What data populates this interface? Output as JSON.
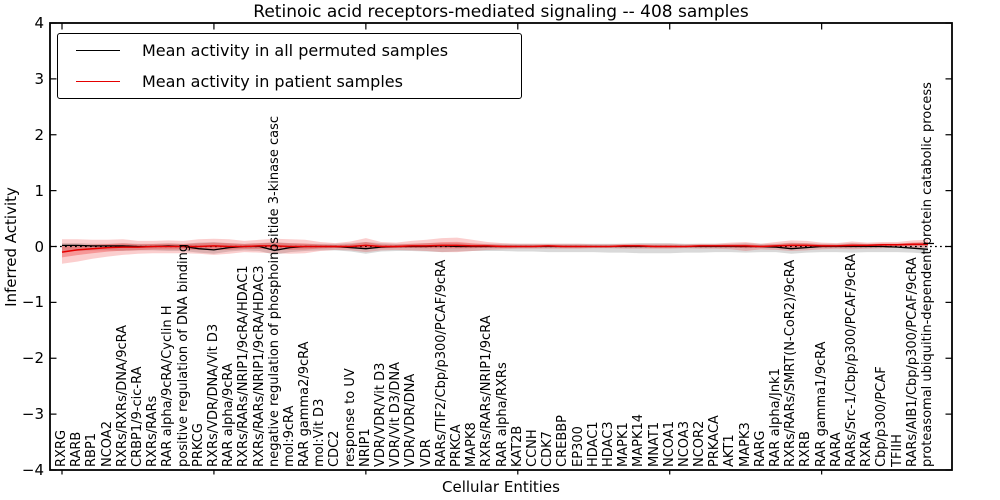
{
  "chart_data": {
    "type": "line",
    "title": "Retinoic acid receptors-mediated signaling -- 408 samples",
    "xlabel": "Cellular Entities",
    "ylabel": "Inferred Activity",
    "ylim": [
      -4,
      4
    ],
    "yticks": [
      4,
      3,
      2,
      1,
      0,
      -1,
      -2,
      -3,
      -4
    ],
    "grid": false,
    "legend_position": "upper left",
    "zero_line": {
      "style": "dotted",
      "color": "#000000"
    },
    "categories": [
      "RXRG",
      "RARB",
      "RBP1",
      "NCOA2",
      "RXRs/RXRs/DNA/9cRA",
      "CRBP1/9-cic-RA",
      "RXRs/RARs",
      "RAR alpha/9cRA/Cyclin H",
      "positive regulation of DNA binding",
      "PRKCG",
      "RXRs/VDR/DNA/Vit D3",
      "RAR alpha/9cRA",
      "RXRs/RARs/NRIP1/9cRA/HDAC1",
      "RXRs/RARs/NRIP1/9cRA/HDAC3",
      "negative regulation of phosphoinositide 3-kinase casc",
      "mol:9cRA",
      "RAR gamma2/9cRA",
      "mol:Vit D3",
      "CDC2",
      "response to UV",
      "NRIP1",
      "VDR/VDR/Vit D3",
      "VDR/Vit D3/DNA",
      "VDR/VDR/DNA",
      "VDR",
      "RARs/TIF2/Cbp/p300/PCAF/9cRA",
      "PRKCA",
      "MAPK8",
      "RXRs/RARs/NRIP1/9cRA",
      "RAR alpha/RXRs",
      "KAT2B",
      "CCNH",
      "CDK7",
      "CREBBP",
      "EP300",
      "HDAC1",
      "HDAC3",
      "MAPK1",
      "MAPK14",
      "MNAT1",
      "NCOA1",
      "NCOA3",
      "NCOR2",
      "PRKACA",
      "AKT1",
      "MAPK3",
      "RARG",
      "RAR alpha/Jnk1",
      "RXRs/RARs/SMRT(N-CoR2)/9cRA",
      "RXRB",
      "RAR gamma1/9cRA",
      "RARA",
      "RARs/Src-1/Cbp/p300/PCAF/9cRA",
      "RXRA",
      "Cbp/p300/PCAF",
      "TFIIH",
      "RARs/AIB1/Cbp/p300/PCAF/9cRA",
      "proteasomal ubiquitin-dependent protein catabolic process"
    ],
    "series": [
      {
        "name": "Mean activity in all permuted samples",
        "color": "#000000",
        "values": [
          0.02,
          0.02,
          0.01,
          0.01,
          0.01,
          0.0,
          0.0,
          0.01,
          0.0,
          -0.04,
          -0.06,
          -0.02,
          0.0,
          0.0,
          -0.07,
          -0.02,
          0.0,
          0.0,
          0.0,
          -0.02,
          -0.04,
          -0.01,
          0.0,
          0.0,
          0.0,
          0.01,
          0.0,
          0.0,
          0.0,
          0.0,
          0.0,
          0.0,
          0.0,
          0.0,
          0.0,
          0.0,
          0.0,
          0.0,
          0.0,
          0.0,
          0.0,
          0.0,
          0.0,
          0.0,
          0.0,
          0.0,
          0.0,
          -0.01,
          -0.04,
          -0.02,
          0.0,
          0.0,
          0.0,
          0.0,
          0.0,
          -0.01,
          -0.03,
          -0.05
        ]
      },
      {
        "name": "Mean activity in patient samples",
        "color": "#e50000",
        "values": [
          -0.1,
          -0.06,
          -0.04,
          -0.02,
          -0.01,
          -0.01,
          0.0,
          0.0,
          0.0,
          0.0,
          0.01,
          0.0,
          0.0,
          0.01,
          0.01,
          0.0,
          0.0,
          0.0,
          0.0,
          0.0,
          0.02,
          0.0,
          0.0,
          0.01,
          0.01,
          0.02,
          0.02,
          0.01,
          0.01,
          0.0,
          0.0,
          0.0,
          0.01,
          0.0,
          0.0,
          0.0,
          0.0,
          0.01,
          0.01,
          0.0,
          0.0,
          0.0,
          0.01,
          0.01,
          0.01,
          0.01,
          0.0,
          0.01,
          0.02,
          0.02,
          0.01,
          0.01,
          0.02,
          0.02,
          0.03,
          0.03,
          0.04,
          0.04
        ]
      }
    ],
    "bands": [
      {
        "name": "permuted samples range",
        "color": "#aaaaaa",
        "opacity": 0.45,
        "low": [
          -0.08,
          -0.08,
          -0.07,
          -0.07,
          -0.08,
          -0.07,
          -0.07,
          -0.08,
          -0.08,
          -0.11,
          -0.13,
          -0.09,
          -0.07,
          -0.08,
          -0.15,
          -0.1,
          -0.08,
          -0.07,
          -0.07,
          -0.09,
          -0.13,
          -0.09,
          -0.08,
          -0.08,
          -0.09,
          -0.1,
          -0.09,
          -0.08,
          -0.08,
          -0.08,
          -0.09,
          -0.09,
          -0.1,
          -0.1,
          -0.1,
          -0.1,
          -0.11,
          -0.11,
          -0.12,
          -0.12,
          -0.12,
          -0.11,
          -0.11,
          -0.1,
          -0.1,
          -0.11,
          -0.1,
          -0.1,
          -0.13,
          -0.11,
          -0.1,
          -0.1,
          -0.11,
          -0.1,
          -0.1,
          -0.1,
          -0.11,
          -0.13
        ],
        "high": [
          0.06,
          0.06,
          0.05,
          0.05,
          0.06,
          0.05,
          0.05,
          0.06,
          0.05,
          0.07,
          0.08,
          0.06,
          0.05,
          0.06,
          0.08,
          0.06,
          0.05,
          0.05,
          0.05,
          0.06,
          0.08,
          0.06,
          0.05,
          0.05,
          0.06,
          0.06,
          0.06,
          0.05,
          0.05,
          0.05,
          0.05,
          0.05,
          0.05,
          0.05,
          0.05,
          0.05,
          0.05,
          0.05,
          0.06,
          0.06,
          0.06,
          0.05,
          0.05,
          0.05,
          0.05,
          0.06,
          0.05,
          0.05,
          0.07,
          0.06,
          0.05,
          0.05,
          0.06,
          0.05,
          0.05,
          0.05,
          0.06,
          0.08
        ]
      },
      {
        "name": "patient samples range",
        "color": "#ee2222",
        "opacity": 0.22,
        "inner_band_fraction": 0.45,
        "low": [
          -0.31,
          -0.27,
          -0.22,
          -0.18,
          -0.15,
          -0.13,
          -0.12,
          -0.12,
          -0.12,
          -0.13,
          -0.15,
          -0.13,
          -0.1,
          -0.11,
          -0.12,
          -0.13,
          -0.12,
          -0.08,
          -0.06,
          -0.07,
          -0.1,
          -0.07,
          -0.06,
          -0.07,
          -0.08,
          -0.1,
          -0.1,
          -0.08,
          -0.06,
          -0.05,
          -0.04,
          -0.04,
          -0.04,
          -0.04,
          -0.04,
          -0.03,
          -0.03,
          -0.04,
          -0.04,
          -0.04,
          -0.04,
          -0.03,
          -0.04,
          -0.04,
          -0.05,
          -0.08,
          -0.05,
          -0.06,
          -0.08,
          -0.07,
          -0.05,
          -0.04,
          -0.05,
          -0.04,
          -0.03,
          -0.02,
          -0.03,
          -0.02
        ],
        "high": [
          0.13,
          0.13,
          0.12,
          0.12,
          0.13,
          0.1,
          0.1,
          0.11,
          0.1,
          0.13,
          0.14,
          0.13,
          0.1,
          0.12,
          0.14,
          0.13,
          0.12,
          0.08,
          0.06,
          0.09,
          0.15,
          0.08,
          0.07,
          0.1,
          0.12,
          0.15,
          0.16,
          0.12,
          0.08,
          0.06,
          0.05,
          0.05,
          0.05,
          0.05,
          0.05,
          0.04,
          0.04,
          0.05,
          0.05,
          0.05,
          0.05,
          0.04,
          0.05,
          0.05,
          0.07,
          0.08,
          0.05,
          0.08,
          0.11,
          0.1,
          0.07,
          0.06,
          0.09,
          0.07,
          0.08,
          0.08,
          0.11,
          0.12
        ]
      }
    ]
  }
}
